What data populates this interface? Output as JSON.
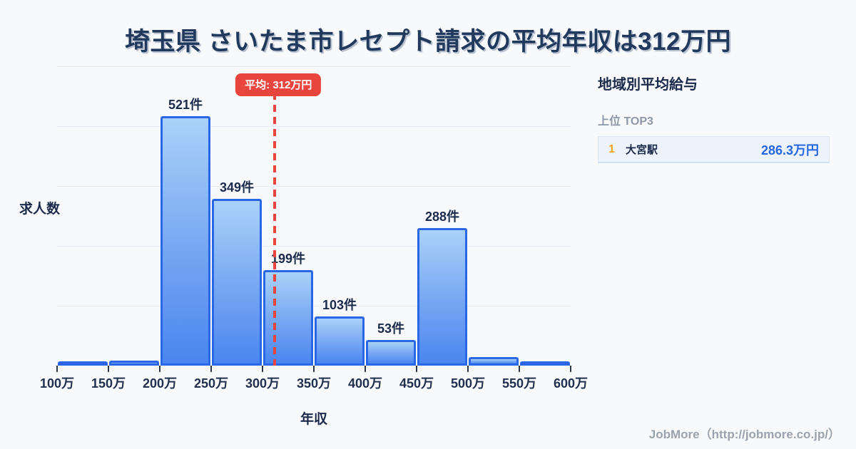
{
  "title": "埼玉県 さいたま市レセプト請求の平均年収は312万円",
  "chart_data": {
    "type": "bar",
    "title": "埼玉県 さいたま市レセプト請求の平均年収は312万円",
    "xlabel": "年収",
    "ylabel": "求人数",
    "unit": "件",
    "x_tick_labels": [
      "100万",
      "150万",
      "200万",
      "250万",
      "300万",
      "350万",
      "400万",
      "450万",
      "500万",
      "550万",
      "600万"
    ],
    "bins": [
      {
        "range": "100万-150万",
        "value": 6,
        "label": null
      },
      {
        "range": "150万-200万",
        "value": 11,
        "label": null
      },
      {
        "range": "200万-250万",
        "value": 521,
        "label": "521件"
      },
      {
        "range": "250万-300万",
        "value": 349,
        "label": "349件"
      },
      {
        "range": "300万-350万",
        "value": 199,
        "label": "199件"
      },
      {
        "range": "350万-400万",
        "value": 103,
        "label": "103件"
      },
      {
        "range": "400万-450万",
        "value": 53,
        "label": "53件"
      },
      {
        "range": "450万-500万",
        "value": 288,
        "label": "288件"
      },
      {
        "range": "500万-550万",
        "value": 18,
        "label": null
      },
      {
        "range": "550万-600万",
        "value": 6,
        "label": null
      }
    ],
    "unlabeled_values_estimated": true,
    "average": {
      "value": 312,
      "label": "平均: 312万円",
      "axis_position": "312万"
    },
    "x_range": [
      "100万",
      "600万"
    ],
    "gridlines": 5,
    "legend": null
  },
  "average_badge": "平均: 312万円",
  "y_axis_title": "求人数",
  "x_axis_title": "年収",
  "sidebar": {
    "heading": "地域別平均給与",
    "subheading": "上位 TOP3",
    "rows": [
      {
        "rank": "1",
        "name": "大宮駅",
        "value": "286.3万円"
      }
    ]
  },
  "footer": {
    "credit": "JobMore（http://jobmore.co.jp/）"
  },
  "colors": {
    "background": "#f7f9fb",
    "title_text": "#21395c",
    "bar_border": "#2a66e6",
    "bar_gradient_top": "#a9d2f8",
    "bar_gradient_bottom": "#4a86ef",
    "gridline": "#e6ebf3",
    "average_red": "#e8453e",
    "rank_gold": "#f2a71b",
    "value_blue": "#2667e0",
    "row_background": "#edf3fc",
    "muted_gray": "#8d97a8"
  }
}
